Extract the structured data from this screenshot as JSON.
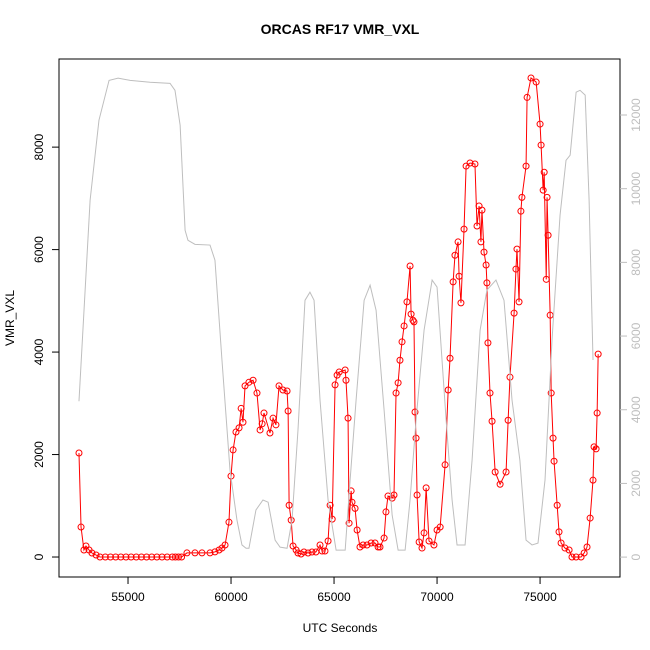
{
  "chart_data": {
    "type": "line",
    "title": "ORCAS RF17 VMR_VXL",
    "xlabel": "UTC Seconds",
    "ylabel": "VMR_VXL",
    "xlim": [
      51650,
      78880
    ],
    "ylim": [
      -390,
      9720
    ],
    "y2lim": [
      -540,
      13520
    ],
    "xticks": [
      55000,
      60000,
      65000,
      70000,
      75000
    ],
    "yticks": [
      0,
      2000,
      4000,
      6000,
      8000
    ],
    "y2ticks": [
      0,
      2000,
      4000,
      6000,
      8000,
      10000,
      12000
    ],
    "series": [
      {
        "color": "#ff0000",
        "markers": true,
        "x": [
          52620,
          52720,
          52860,
          52960,
          53110,
          53250,
          53450,
          53640,
          53900,
          54150,
          54400,
          54650,
          54900,
          55150,
          55400,
          55650,
          55900,
          56150,
          56400,
          56650,
          56900,
          57150,
          57300,
          57450,
          57600,
          57860,
          58250,
          58590,
          58980,
          59220,
          59420,
          59560,
          59710,
          59900,
          60000,
          60100,
          60240,
          60390,
          60490,
          60580,
          60680,
          60870,
          61070,
          61260,
          61410,
          61510,
          61600,
          61890,
          62040,
          62180,
          62330,
          62520,
          62720,
          62770,
          62820,
          62920,
          63010,
          63160,
          63250,
          63400,
          63540,
          63740,
          63930,
          64120,
          64320,
          64420,
          64560,
          64710,
          64810,
          64910,
          65050,
          65150,
          65250,
          65540,
          65580,
          65680,
          65730,
          65830,
          65870,
          66020,
          66120,
          66260,
          66410,
          66600,
          66800,
          66990,
          67140,
          67230,
          67430,
          67520,
          67620,
          67820,
          67910,
          68010,
          68110,
          68200,
          68300,
          68400,
          68540,
          68690,
          68740,
          68830,
          68880,
          68930,
          68980,
          69030,
          69130,
          69270,
          69370,
          69470,
          69610,
          69850,
          70000,
          70150,
          70390,
          70540,
          70630,
          70780,
          70870,
          71020,
          71070,
          71160,
          71310,
          71410,
          71600,
          71840,
          71940,
          72040,
          72130,
          72180,
          72280,
          72380,
          72420,
          72470,
          72570,
          72670,
          72820,
          73060,
          73350,
          73450,
          73540,
          73740,
          73830,
          73880,
          73980,
          74070,
          74120,
          74320,
          74370,
          74560,
          74810,
          75000,
          75050,
          75150,
          75200,
          75300,
          75340,
          75390,
          75490,
          75540,
          75630,
          75680,
          75830,
          75920,
          76020,
          76210,
          76410,
          76550,
          76750,
          76990,
          77140,
          77280,
          77430,
          77570,
          77620,
          77720,
          77770,
          77820
        ],
        "values": [
          2030,
          585,
          137,
          215,
          137,
          78,
          39,
          0,
          0,
          0,
          0,
          0,
          0,
          0,
          0,
          0,
          0,
          0,
          0,
          0,
          0,
          0,
          0,
          0,
          0,
          80,
          80,
          80,
          80,
          100,
          137,
          175,
          234,
          680,
          1580,
          2090,
          2440,
          2520,
          2900,
          2630,
          3340,
          3410,
          3450,
          3200,
          2480,
          2600,
          2810,
          2420,
          2710,
          2580,
          3340,
          3260,
          3240,
          2850,
          1010,
          720,
          215,
          137,
          78,
          59,
          98,
          78,
          98,
          98,
          234,
          117,
          117,
          312,
          1010,
          740,
          3360,
          3550,
          3610,
          3650,
          3450,
          2710,
          660,
          1290,
          1070,
          950,
          527,
          195,
          234,
          234,
          273,
          273,
          195,
          195,
          370,
          880,
          1190,
          1150,
          1210,
          3200,
          3400,
          3840,
          4200,
          4510,
          4980,
          5680,
          4740,
          4620,
          4590,
          2830,
          2320,
          1210,
          293,
          175,
          470,
          1350,
          312,
          234,
          527,
          585,
          1800,
          3260,
          3880,
          5370,
          5890,
          6150,
          5480,
          4960,
          6400,
          7630,
          7690,
          7670,
          6460,
          6850,
          6150,
          6770,
          5950,
          5700,
          5350,
          4180,
          3200,
          2650,
          1660,
          1420,
          1660,
          2670,
          3510,
          4760,
          5620,
          6010,
          4980,
          6750,
          7020,
          7630,
          8970,
          9350,
          9270,
          8450,
          8040,
          7160,
          7510,
          5420,
          7020,
          6280,
          4720,
          3200,
          2320,
          1870,
          1010,
          490,
          273,
          175,
          137,
          0,
          0,
          0,
          78,
          195,
          760,
          1500,
          2150,
          2110,
          2810,
          3960
        ]
      },
      {
        "color": "#bebebe",
        "axis": "y2",
        "x": [
          52620,
          53160,
          53590,
          54080,
          54520,
          55100,
          56070,
          57040,
          57280,
          57530,
          57770,
          57910,
          58250,
          58980,
          59220,
          59560,
          59950,
          60290,
          60530,
          60730,
          60870,
          61210,
          61550,
          61800,
          62140,
          62380,
          62720,
          62960,
          63250,
          63590,
          63830,
          64030,
          64320,
          64710,
          65100,
          65540,
          65780,
          66070,
          66460,
          66750,
          67040,
          67430,
          67820,
          68110,
          68450,
          68690,
          68980,
          69370,
          69760,
          70000,
          70440,
          70730,
          70970,
          71360,
          71700,
          72090,
          72420,
          72860,
          73250,
          73640,
          74020,
          74320,
          74610,
          74900,
          75240,
          75580,
          75970,
          76260,
          76460,
          76750,
          76940,
          77190,
          77380,
          77570
        ],
        "values": [
          4230,
          9690,
          11860,
          12940,
          13000,
          12940,
          12890,
          12860,
          12670,
          11720,
          8870,
          8600,
          8490,
          8470,
          8060,
          5350,
          2360,
          1000,
          330,
          240,
          240,
          1280,
          1550,
          1490,
          460,
          270,
          240,
          1000,
          3450,
          6970,
          7190,
          6970,
          4260,
          1550,
          190,
          190,
          2090,
          4260,
          6970,
          7380,
          6700,
          3990,
          1140,
          190,
          190,
          1550,
          3720,
          6160,
          7520,
          7330,
          3720,
          1550,
          330,
          330,
          2630,
          6160,
          7250,
          7520,
          6970,
          4260,
          2630,
          460,
          330,
          380,
          2090,
          5890,
          9280,
          10770,
          10910,
          12620,
          12670,
          12540,
          9690,
          5350
        ]
      }
    ]
  }
}
